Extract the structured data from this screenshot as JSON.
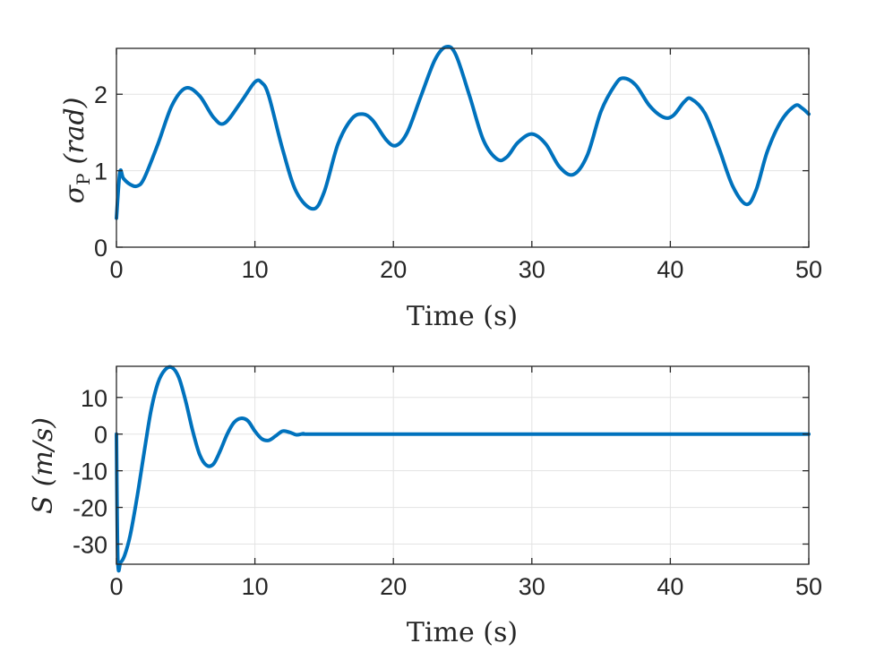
{
  "chart_data": [
    {
      "type": "line",
      "xlabel": "Time (s)",
      "ylabel": {
        "symbol": "σ",
        "subscript": "P",
        "unit": "(rad)"
      },
      "xlim": [
        0,
        50
      ],
      "ylim": [
        0,
        2.6
      ],
      "xticks": [
        0,
        10,
        20,
        30,
        40,
        50
      ],
      "yticks": [
        0,
        1,
        2
      ],
      "grid": true,
      "color": "#0072BD",
      "series": [
        {
          "x": [
            0,
            0.25,
            0.5,
            1,
            1.5,
            2,
            3,
            4,
            5,
            6,
            7,
            7.8,
            9,
            10,
            10.5,
            11,
            12,
            13,
            14.2,
            15,
            16,
            17,
            17.8,
            18.5,
            19.5,
            20.2,
            21,
            22,
            23,
            23.8,
            24.5,
            25.5,
            26.5,
            27.5,
            28.2,
            29,
            30,
            31,
            32,
            33,
            34,
            35,
            36,
            36.6,
            37.5,
            38.5,
            39.5,
            40.2,
            41,
            41.5,
            42.5,
            43.5,
            44.5,
            45.5,
            46.2,
            47,
            48,
            49,
            49.5,
            50
          ],
          "y": [
            0.38,
            0.98,
            0.9,
            0.82,
            0.8,
            0.9,
            1.35,
            1.85,
            2.08,
            1.98,
            1.7,
            1.62,
            1.9,
            2.16,
            2.15,
            1.98,
            1.28,
            0.72,
            0.5,
            0.72,
            1.35,
            1.68,
            1.74,
            1.66,
            1.4,
            1.33,
            1.5,
            1.98,
            2.45,
            2.62,
            2.52,
            1.98,
            1.4,
            1.15,
            1.18,
            1.37,
            1.48,
            1.35,
            1.05,
            0.95,
            1.2,
            1.78,
            2.12,
            2.21,
            2.12,
            1.85,
            1.7,
            1.72,
            1.9,
            1.94,
            1.75,
            1.3,
            0.8,
            0.56,
            0.75,
            1.25,
            1.65,
            1.85,
            1.82,
            1.74
          ]
        }
      ]
    },
    {
      "type": "line",
      "xlabel": "Time (s)",
      "ylabel": {
        "symbol": "S",
        "unit": "(m/s)"
      },
      "xlim": [
        0,
        50
      ],
      "ylim": [
        -35.5,
        18.5
      ],
      "xticks": [
        0,
        10,
        20,
        30,
        40,
        50
      ],
      "yticks": [
        10,
        0,
        -10,
        -20,
        -30
      ],
      "grid": true,
      "color": "#0072BD",
      "series": [
        {
          "x": [
            0,
            0.1,
            0.3,
            0.6,
            1,
            1.5,
            2,
            2.5,
            3,
            3.5,
            4,
            4.5,
            5,
            5.5,
            6,
            6.5,
            7,
            7.5,
            8,
            8.5,
            9,
            9.5,
            10,
            10.5,
            11,
            11.5,
            12,
            12.5,
            13,
            13.5,
            14,
            20,
            30,
            40,
            50
          ],
          "y": [
            0,
            -34.5,
            -35,
            -33,
            -27.5,
            -17,
            -5,
            6.5,
            14,
            17.5,
            18.2,
            15.5,
            9,
            1,
            -5.5,
            -8.5,
            -8.2,
            -4.5,
            0,
            3.2,
            4.3,
            3.6,
            0.8,
            -1.3,
            -1.7,
            -0.5,
            0.8,
            0.5,
            -0.2,
            0.1,
            0,
            0,
            0,
            0,
            0
          ]
        }
      ]
    }
  ]
}
